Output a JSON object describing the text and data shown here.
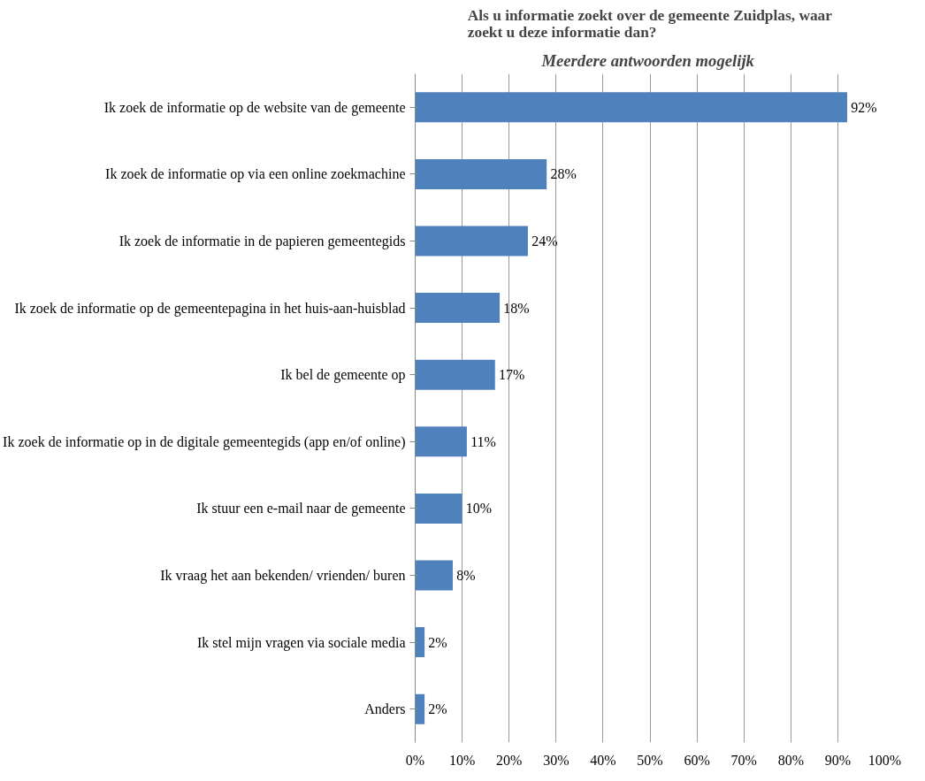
{
  "chart_data": {
    "type": "bar",
    "orientation": "horizontal",
    "title": "Als u informatie zoekt over de gemeente Zuidplas, waar zoekt u deze informatie dan?",
    "subtitle": "Meerdere antwoorden  mogelijk",
    "categories": [
      "Ik zoek de informatie op de website van de gemeente",
      "Ik zoek de informatie op via een online zoekmachine",
      "Ik zoek de informatie in de papieren gemeentegids",
      "Ik zoek de informatie op de gemeentepagina in het huis-aan-huisblad",
      "Ik bel de gemeente op",
      "Ik zoek de informatie op in de digitale gemeentegids (app en/of online)",
      "Ik stuur een e-mail naar de gemeente",
      "Ik vraag het aan bekenden/ vrienden/ buren",
      "Ik stel mijn vragen via sociale media",
      "Anders"
    ],
    "values": [
      92,
      28,
      24,
      18,
      17,
      11,
      10,
      8,
      2,
      2
    ],
    "value_labels": [
      "92%",
      "28%",
      "24%",
      "18%",
      "17%",
      "11%",
      "10%",
      "8%",
      "2%",
      "2%"
    ],
    "color": "#4f81bd",
    "xlim": [
      0,
      100
    ],
    "xticks": [
      {
        "value": 0,
        "label": "0%"
      },
      {
        "value": 10,
        "label": "10%"
      },
      {
        "value": 20,
        "label": "20%"
      },
      {
        "value": 30,
        "label": "30%"
      },
      {
        "value": 40,
        "label": "40%"
      },
      {
        "value": 50,
        "label": "50%"
      },
      {
        "value": 60,
        "label": "60%"
      },
      {
        "value": 70,
        "label": "70%"
      },
      {
        "value": 80,
        "label": "80%"
      },
      {
        "value": 90,
        "label": "90%"
      },
      {
        "value": 100,
        "label": "100%"
      }
    ],
    "grid": "x"
  }
}
